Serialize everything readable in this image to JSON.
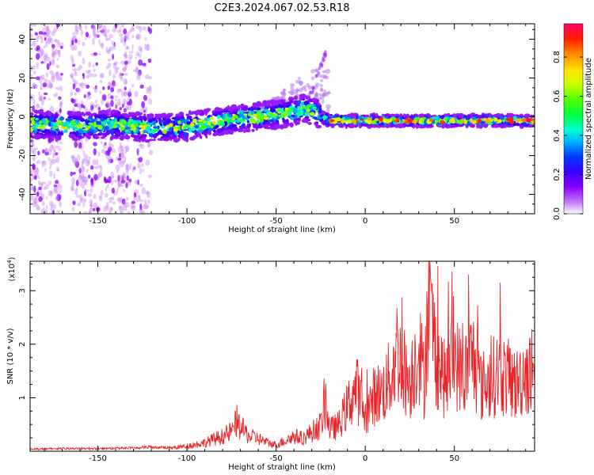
{
  "title": "C2E3.2024.067.02.53.R18",
  "colors": {
    "snr_line": "#e8262a",
    "axis": "#000000",
    "background": "#ffffff"
  },
  "chart_data": [
    {
      "type": "heatmap",
      "xlabel": "Height of straight line (km)",
      "ylabel": "Frequency (Hz)",
      "xlim": [
        -188,
        95
      ],
      "ylim": [
        -50,
        48
      ],
      "x_ticks": [
        -150,
        -100,
        -50,
        0,
        50
      ],
      "x_tick_labels": [
        "-150",
        "-100",
        "-50",
        "0",
        "50"
      ],
      "y_ticks": [
        -40,
        -20,
        0,
        20,
        40
      ],
      "y_tick_labels": [
        "-40",
        "-20",
        "0",
        "20",
        "40"
      ],
      "ridge": {
        "x": [
          -188,
          -160,
          -140,
          -120,
          -100,
          -80,
          -60,
          -45,
          -35,
          -28,
          -25,
          -20,
          0,
          50,
          95
        ],
        "freq_hz": [
          -4,
          -5,
          -4,
          -6,
          -5,
          -2,
          0,
          2,
          4,
          3,
          0,
          -2,
          -2,
          -2,
          -2
        ]
      },
      "colorbar": {
        "label": "Normalized spectral amplitude",
        "range": [
          0,
          0.97
        ],
        "ticks": [
          0.0,
          0.2,
          0.4,
          0.6,
          0.8
        ],
        "tick_labels": [
          "0.0",
          "0.2",
          "0.4",
          "0.6",
          "0.8"
        ]
      }
    },
    {
      "type": "line",
      "xlabel": "Height of straight line (km)",
      "ylabel": "SNR (10 * v/v)",
      "y_scale_label": "(x10",
      "y_scale_exp": "4",
      "y_scale_close": ")",
      "xlim": [
        -188,
        95
      ],
      "ylim": [
        0,
        3.55
      ],
      "x_ticks": [
        -150,
        -100,
        -50,
        0,
        50
      ],
      "x_tick_labels": [
        "-150",
        "-100",
        "-50",
        "0",
        "50"
      ],
      "y_ticks": [
        1,
        2,
        3
      ],
      "y_tick_labels": [
        "1",
        "2",
        "3"
      ],
      "series": [
        {
          "x": [
            -188,
            -170,
            -150,
            -130,
            -120,
            -110,
            -100,
            -95,
            -90,
            -85,
            -80,
            -75,
            -72,
            -70,
            -65,
            -60,
            -55,
            -50,
            -45,
            -40,
            -35,
            -30,
            -25,
            -22,
            -20,
            -15,
            -10,
            -5,
            0,
            5,
            10,
            15,
            18,
            20,
            25,
            30,
            33,
            35,
            40,
            45,
            50,
            55,
            60,
            65,
            70,
            75,
            80,
            85,
            90,
            95
          ],
          "values": [
            0.04,
            0.05,
            0.05,
            0.06,
            0.08,
            0.07,
            0.12,
            0.16,
            0.2,
            0.28,
            0.35,
            0.45,
            0.7,
            0.55,
            0.35,
            0.3,
            0.2,
            0.15,
            0.25,
            0.35,
            0.3,
            0.45,
            0.6,
            1.2,
            0.5,
            0.6,
            1.05,
            1.5,
            0.8,
            1.3,
            1.4,
            1.8,
            2.4,
            2.05,
            1.6,
            2.5,
            1.6,
            3.5,
            2.2,
            1.6,
            2.2,
            1.7,
            2.25,
            1.5,
            1.65,
            1.85,
            1.7,
            1.55,
            1.9,
            1.6
          ]
        }
      ]
    }
  ]
}
